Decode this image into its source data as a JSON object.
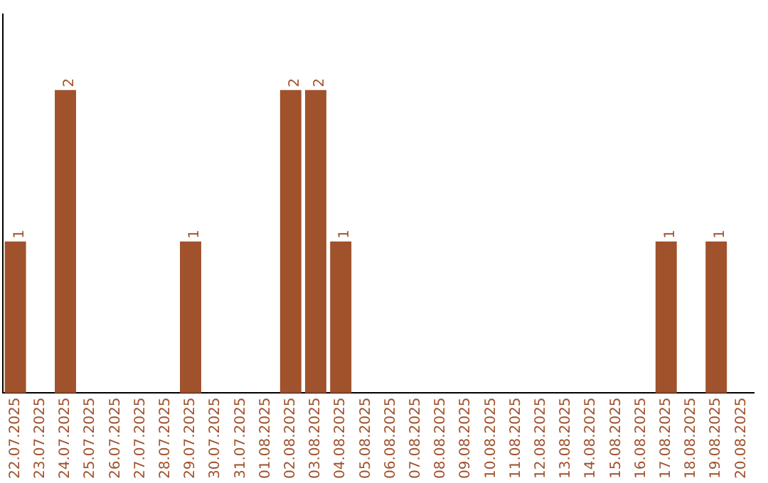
{
  "chart_data": {
    "type": "bar",
    "categories": [
      "22.07.2025",
      "23.07.2025",
      "24.07.2025",
      "25.07.2025",
      "26.07.2025",
      "27.07.2025",
      "28.07.2025",
      "29.07.2025",
      "30.07.2025",
      "31.07.2025",
      "01.08.2025",
      "02.08.2025",
      "03.08.2025",
      "04.08.2025",
      "05.08.2025",
      "06.08.2025",
      "07.08.2025",
      "08.08.2025",
      "09.08.2025",
      "10.08.2025",
      "11.08.2025",
      "12.08.2025",
      "13.08.2025",
      "14.08.2025",
      "15.08.2025",
      "16.08.2025",
      "17.08.2025",
      "18.08.2025",
      "19.08.2025",
      "20.08.2025"
    ],
    "values": [
      1,
      0,
      2,
      0,
      0,
      0,
      0,
      1,
      0,
      0,
      0,
      2,
      2,
      1,
      0,
      0,
      0,
      0,
      0,
      0,
      0,
      0,
      0,
      0,
      0,
      0,
      1,
      0,
      1,
      0
    ],
    "value_labels": [
      "1",
      null,
      "2",
      null,
      null,
      null,
      null,
      "1",
      null,
      null,
      null,
      "2",
      "2",
      "1",
      null,
      null,
      null,
      null,
      null,
      null,
      null,
      null,
      null,
      null,
      null,
      null,
      "1",
      null,
      "1",
      null
    ],
    "color": "#a0522d",
    "grid": false,
    "legend": false,
    "tick_labels": "x"
  }
}
